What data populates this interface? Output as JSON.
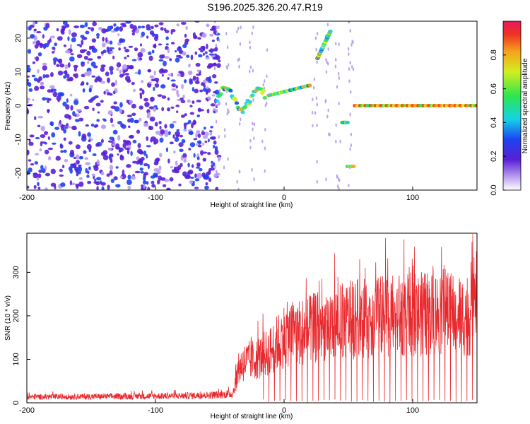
{
  "title": "S196.2025.326.20.47.R19",
  "chart_data": [
    {
      "type": "heatmap",
      "xlabel": "Height of straight line (km)",
      "ylabel": "Frequency (Hz)",
      "xlim": [
        -200,
        150
      ],
      "ylim": [
        -25,
        25
      ],
      "xticks": [
        -200,
        -100,
        0,
        100
      ],
      "yticks": [
        -20,
        -10,
        0,
        10,
        20
      ],
      "colorbar": {
        "label": "Normalized spectral amplitude",
        "range": [
          0,
          1
        ],
        "ticks": [
          0.0,
          0.2,
          0.4,
          0.6,
          0.8
        ]
      },
      "features": [
        {
          "x": [
            -52,
            -15
          ],
          "y": [
            0,
            7
          ],
          "shape": "scattered band"
        },
        {
          "x": [
            -12,
            20
          ],
          "y": [
            3,
            6
          ],
          "shape": "rising band"
        },
        {
          "x": [
            26,
            36
          ],
          "y": [
            14,
            22
          ],
          "shape": "band"
        },
        {
          "x": [
            45,
            54
          ],
          "y": [
            -18,
            -5
          ],
          "shape": "points"
        },
        {
          "x": [
            55,
            150
          ],
          "y": [
            0,
            0
          ],
          "shape": "flat line"
        }
      ]
    },
    {
      "type": "line",
      "xlabel": "Height of straight line (km)",
      "ylabel": "SNR (10 * v/v)",
      "xlim": [
        -200,
        150
      ],
      "ylim": [
        0,
        390
      ],
      "xticks": [
        -200,
        -100,
        0,
        100
      ],
      "yticks": [
        0,
        100,
        200,
        300
      ],
      "color": "#e8292e",
      "envelope": {
        "x": [
          -200,
          -120,
          -60,
          -40,
          -35,
          -30,
          -20,
          -10,
          0,
          20,
          40,
          60,
          80,
          100,
          120,
          140,
          150
        ],
        "y": [
          20,
          22,
          25,
          30,
          120,
          140,
          150,
          180,
          230,
          250,
          270,
          290,
          295,
          300,
          305,
          300,
          300
        ]
      }
    }
  ]
}
